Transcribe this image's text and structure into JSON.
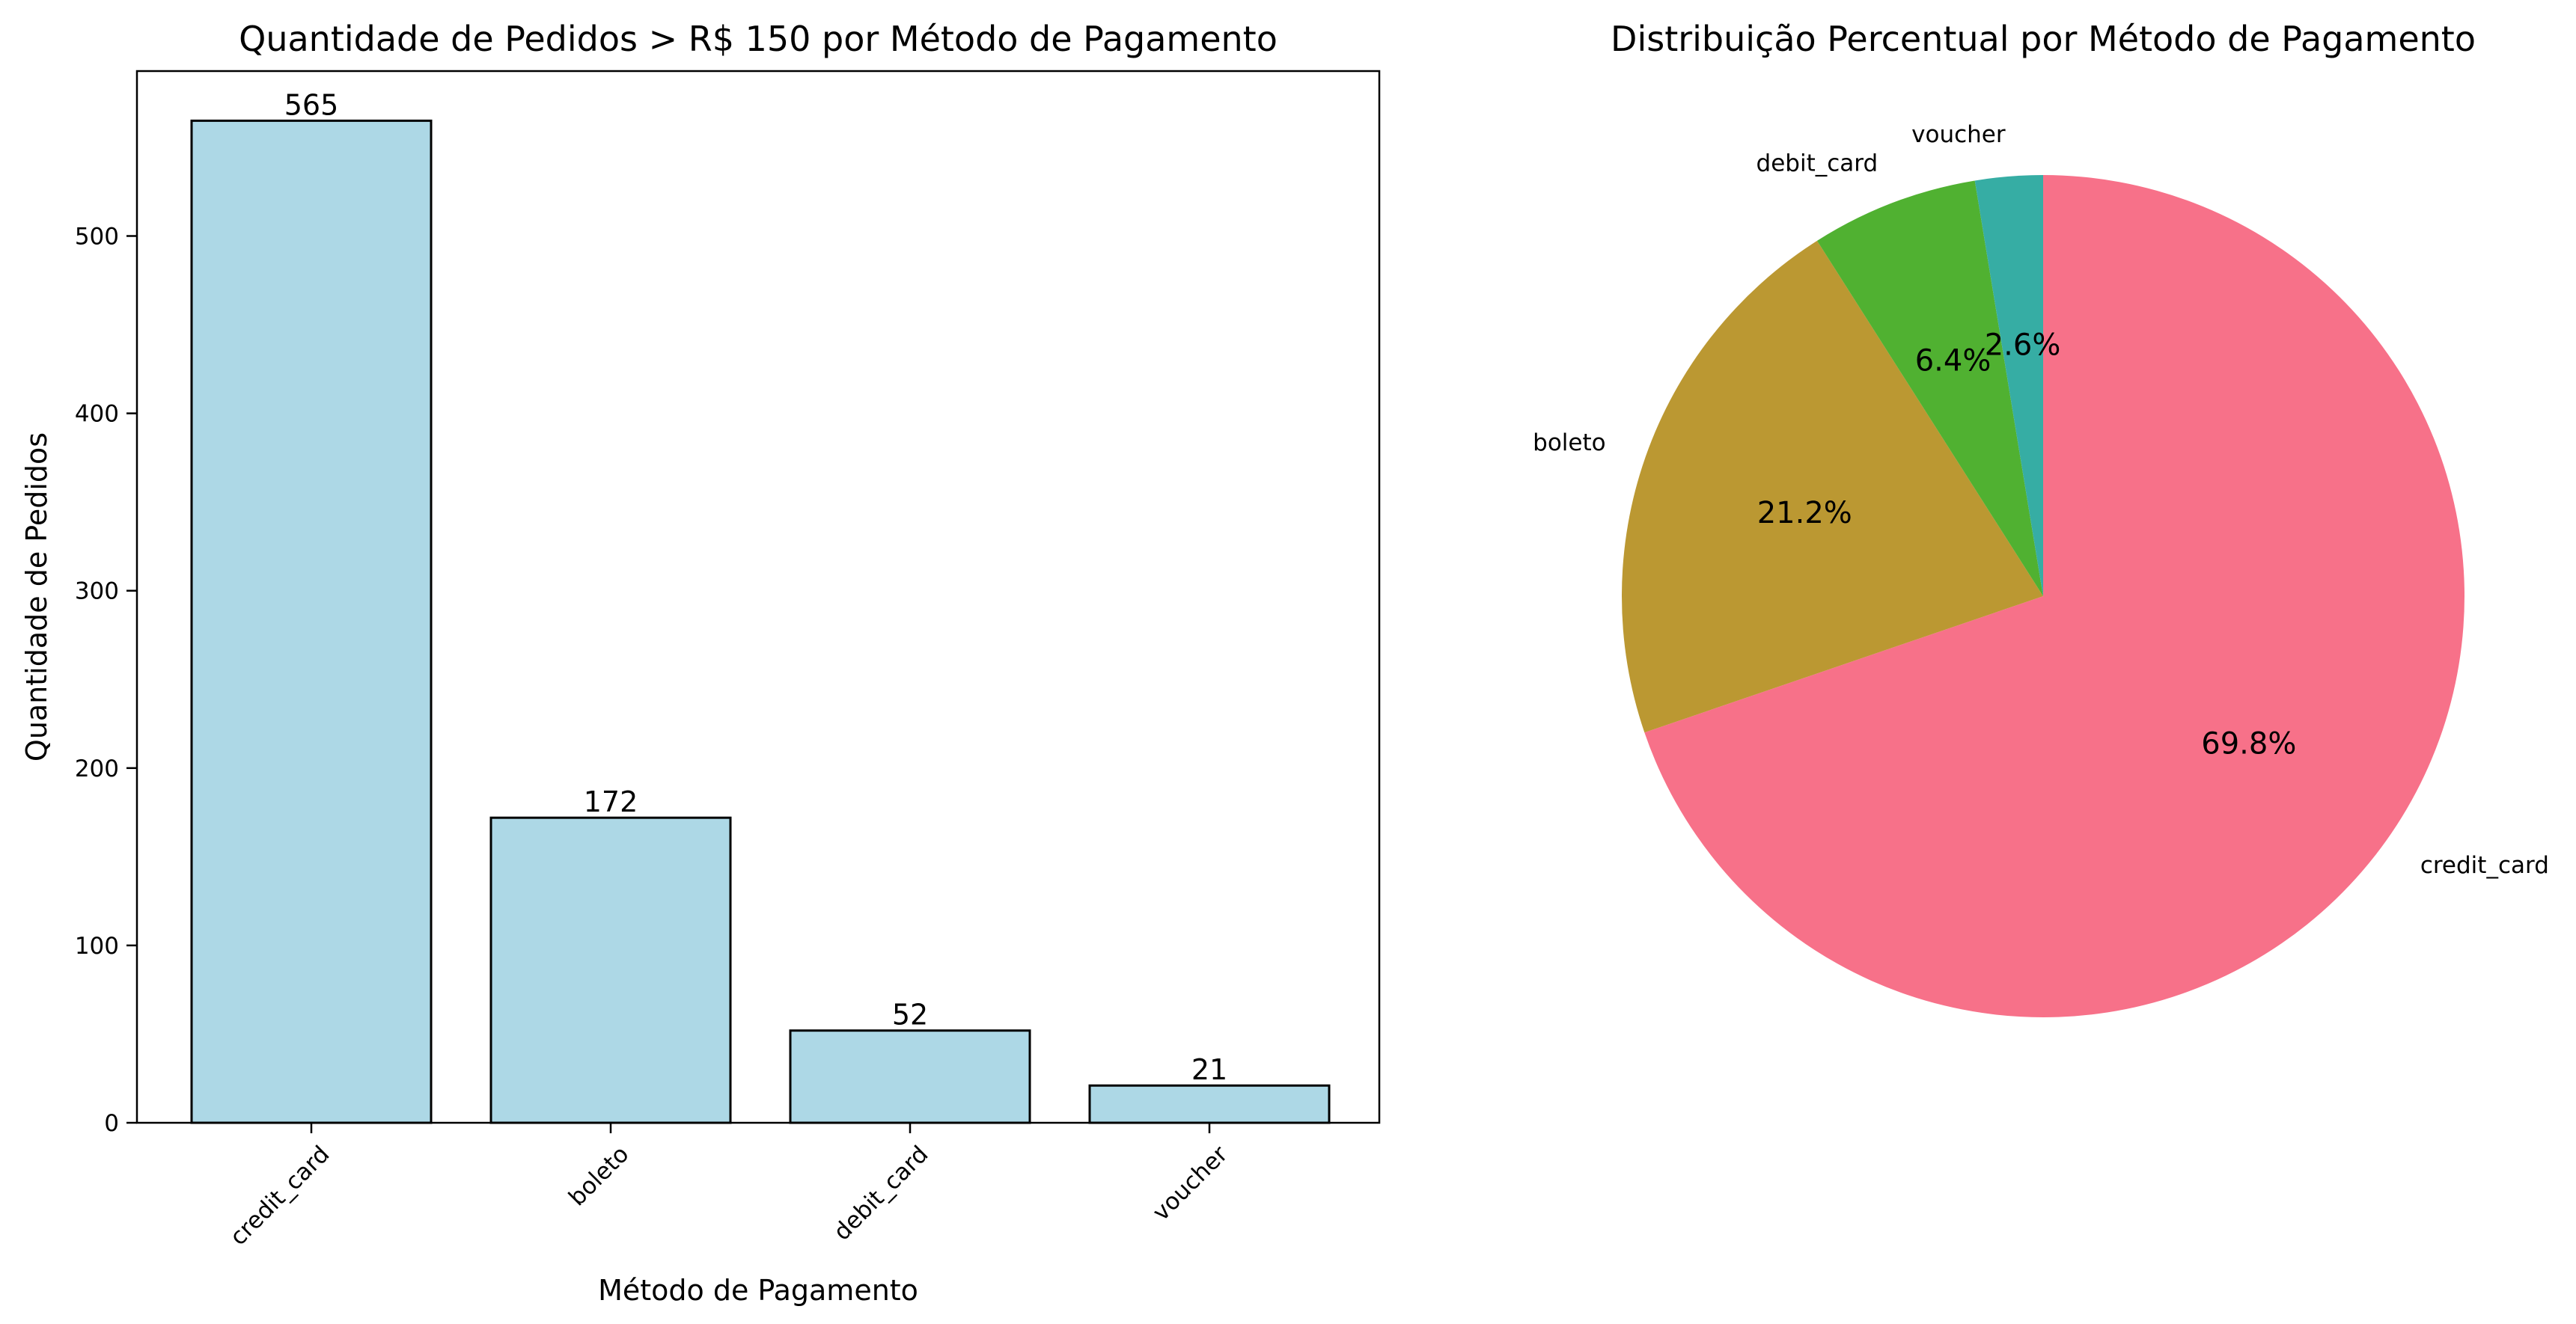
{
  "chart_data": [
    {
      "type": "bar",
      "title": "Quantidade de Pedidos > R$ 150 por Método de Pagamento",
      "xlabel": "Método de Pagamento",
      "ylabel": "Quantidade de Pedidos",
      "categories": [
        "credit_card",
        "boleto",
        "debit_card",
        "voucher"
      ],
      "values": [
        565,
        172,
        52,
        21
      ],
      "value_labels": [
        "565",
        "172",
        "52",
        "21"
      ],
      "yticks": [
        0,
        100,
        200,
        300,
        400,
        500
      ],
      "ytick_labels": [
        "0",
        "100",
        "200",
        "300",
        "400",
        "500"
      ],
      "ylim": [
        0,
        593
      ],
      "bar_color": "#add8e6",
      "edge_color": "#000000",
      "grid": false
    },
    {
      "type": "pie",
      "title": "Distribuição Percentual por Método de Pagamento",
      "labels": [
        "credit_card",
        "boleto",
        "debit_card",
        "voucher"
      ],
      "values": [
        565,
        172,
        52,
        21
      ],
      "percent_labels": [
        "69.8%",
        "21.2%",
        "6.4%",
        "2.6%"
      ],
      "colors": [
        "#f77189",
        "#bb9832",
        "#50b131",
        "#36ada4"
      ],
      "start_angle_deg": 90,
      "direction": "clockwise"
    }
  ]
}
